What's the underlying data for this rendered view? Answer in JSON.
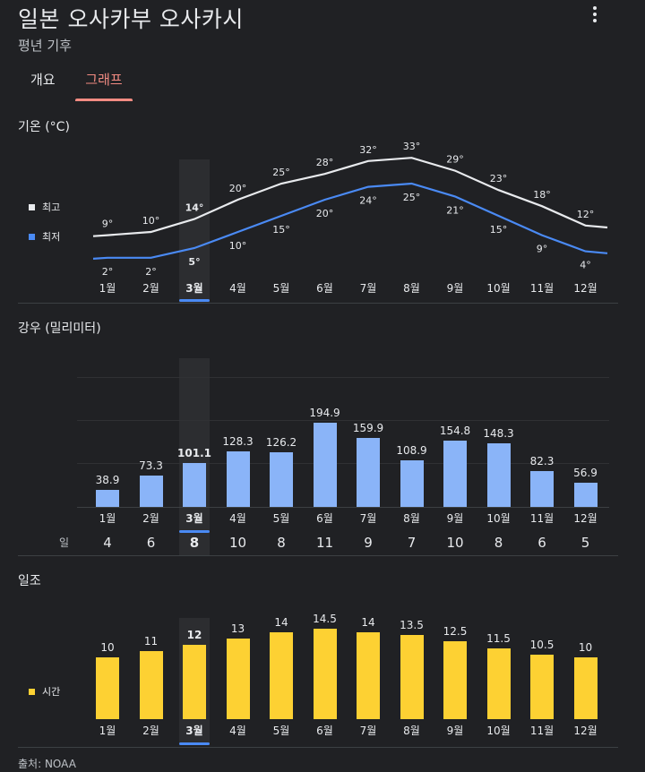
{
  "header": {
    "title": "일본 오사카부 오사카시",
    "subtitle": "평년 기후",
    "menu_icon": "more-vert-icon"
  },
  "tabs": [
    {
      "label": "개요",
      "active": false
    },
    {
      "label": "그래프",
      "active": true
    }
  ],
  "months": [
    "1월",
    "2월",
    "3월",
    "4월",
    "5월",
    "6월",
    "7월",
    "8월",
    "9월",
    "10월",
    "11월",
    "12월"
  ],
  "selected_month_index": 2,
  "temperature": {
    "title": "기온 (°C)",
    "legend": [
      {
        "label": "최고",
        "color": "#e8eaed"
      },
      {
        "label": "최저",
        "color": "#4a8af4"
      }
    ],
    "high": [
      9,
      10,
      14,
      20,
      25,
      28,
      32,
      33,
      29,
      23,
      18,
      12
    ],
    "low": [
      2,
      2,
      5,
      10,
      15,
      20,
      24,
      25,
      21,
      15,
      9,
      4
    ],
    "unit_suffix": "°"
  },
  "precipitation": {
    "title": "강우 (밀리미터)",
    "values": [
      38.9,
      73.3,
      101.1,
      128.3,
      126.2,
      194.9,
      159.9,
      108.9,
      154.8,
      148.3,
      82.3,
      56.9
    ],
    "color": "#8ab4f8",
    "days_label": "일",
    "days": [
      4,
      6,
      8,
      10,
      8,
      11,
      9,
      7,
      10,
      8,
      6,
      5
    ]
  },
  "sunshine": {
    "title": "일조",
    "legend": [
      {
        "label": "시간",
        "color": "#fdd133"
      }
    ],
    "values": [
      10,
      11,
      12,
      13,
      14,
      14.5,
      14,
      13.5,
      12.5,
      11.5,
      10.5,
      10
    ],
    "color": "#fdd133"
  },
  "footer": {
    "source": "출처: NOAA"
  }
}
